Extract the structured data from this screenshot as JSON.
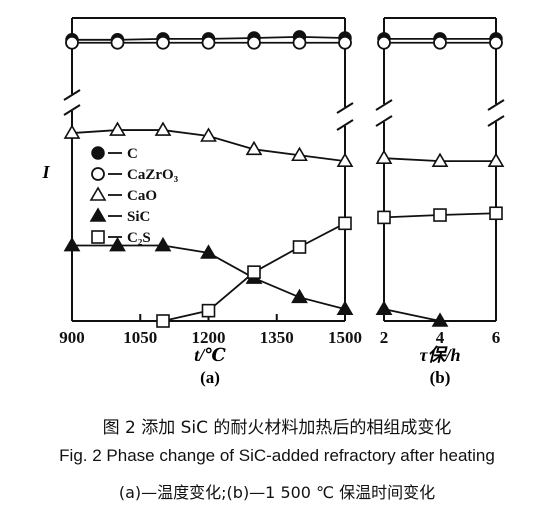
{
  "chart_data": [
    {
      "panel": "a",
      "type": "line",
      "panel_label": "(a)",
      "xlabel": "t/℃",
      "ylabel": "I",
      "xlim": [
        900,
        1500
      ],
      "x_ticks": [
        "900",
        "1050",
        "1200",
        "1350",
        "1500"
      ],
      "x_tick_values": [
        900,
        1050,
        1200,
        1350,
        1500
      ],
      "y_ticks": "none",
      "y_axis_break": true,
      "grid": false,
      "legend_placement": "left",
      "series": [
        {
          "name": "C",
          "marker": "filled-circle",
          "x": [
            900,
            1000,
            1100,
            1200,
            1300,
            1400,
            1500
          ],
          "y": [
            95,
            95,
            95.3,
            95.3,
            95.6,
            96,
            95.6
          ]
        },
        {
          "name": "CaZrO3",
          "marker": "open-circle",
          "x": [
            900,
            1000,
            1100,
            1200,
            1300,
            1400,
            1500
          ],
          "y": [
            94,
            94,
            94,
            94,
            94,
            94,
            94
          ]
        },
        {
          "name": "CaO",
          "marker": "open-triangle",
          "x": [
            900,
            1000,
            1100,
            1200,
            1300,
            1400,
            1500
          ],
          "y": [
            63.5,
            64.5,
            64.5,
            62.5,
            58,
            56,
            54
          ]
        },
        {
          "name": "SiC",
          "marker": "filled-triangle",
          "x": [
            900,
            1000,
            1100,
            1200,
            1300,
            1400,
            1500
          ],
          "y": [
            25.5,
            25.5,
            25.5,
            23,
            14.5,
            8,
            4
          ]
        },
        {
          "name": "C2S",
          "marker": "open-square",
          "x": [
            1100,
            1200,
            1300,
            1400,
            1500
          ],
          "y": [
            0,
            3.5,
            16.5,
            25,
            33
          ]
        }
      ]
    },
    {
      "panel": "b",
      "type": "line",
      "panel_label": "(b)",
      "xlabel": "τ保/h",
      "ylabel": "",
      "xlim": [
        2,
        6
      ],
      "x_ticks": [
        "2",
        "4",
        "6"
      ],
      "x_tick_values": [
        2,
        4,
        6
      ],
      "y_axis_break": true,
      "grid": false,
      "series": [
        {
          "name": "C",
          "marker": "filled-circle",
          "x": [
            2,
            4,
            6
          ],
          "y": [
            95.3,
            95.3,
            95.3
          ]
        },
        {
          "name": "CaZrO3",
          "marker": "open-circle",
          "x": [
            2,
            4,
            6
          ],
          "y": [
            94,
            94,
            94
          ]
        },
        {
          "name": "CaO",
          "marker": "open-triangle",
          "x": [
            2,
            4,
            6
          ],
          "y": [
            55,
            54,
            54
          ]
        },
        {
          "name": "SiC",
          "marker": "filled-triangle",
          "x": [
            2,
            4
          ],
          "y": [
            4,
            0
          ]
        },
        {
          "name": "C2S",
          "marker": "open-square",
          "x": [
            2,
            4,
            6
          ],
          "y": [
            35,
            35.8,
            36.4
          ]
        }
      ]
    }
  ],
  "legend": [
    {
      "marker": "filled-circle",
      "label": "C"
    },
    {
      "marker": "open-circle",
      "label": "CaZrO₃"
    },
    {
      "marker": "open-triangle",
      "label": "CaO"
    },
    {
      "marker": "filled-triangle",
      "label": "SiC"
    },
    {
      "marker": "open-square",
      "label": "C₂S"
    }
  ],
  "captions": {
    "chinese": "图 2   添加 SiC 的耐火材料加热后的相组成变化",
    "english": "Fig. 2   Phase change of SiC-added refractory after heating",
    "sub": "(a)—温度变化;(b)—1 500 ℃ 保温时间变化"
  },
  "colors": {
    "ink": "#111111",
    "background": "#ffffff"
  }
}
